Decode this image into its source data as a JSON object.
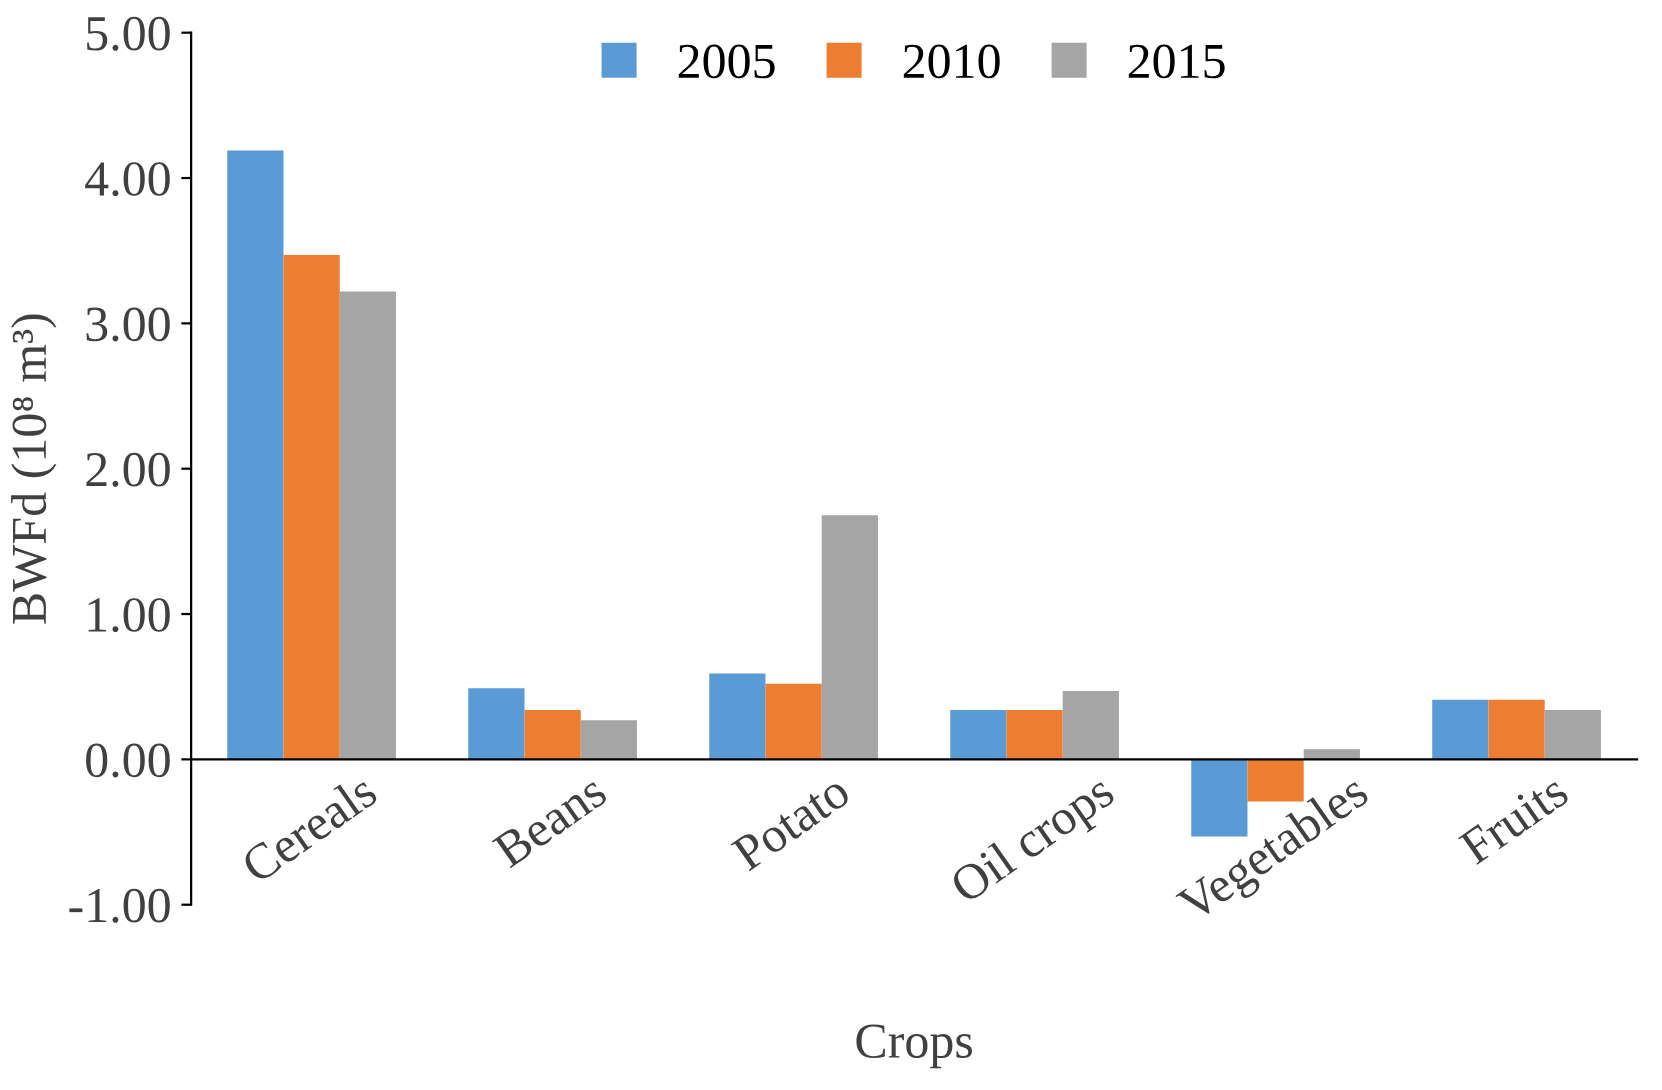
{
  "chart_data": {
    "type": "bar",
    "xlabel": "Crops",
    "ylabel": "BWFd (10⁸ m³)",
    "categories": [
      "Cereals",
      "Beans",
      "Potato",
      "Oil crops",
      "Vegetables",
      "Fruits"
    ],
    "series": [
      {
        "name": "2005",
        "color": "#5b9bd5",
        "values": [
          4.19,
          0.49,
          0.59,
          0.34,
          -0.53,
          0.41
        ]
      },
      {
        "name": "2010",
        "color": "#ed7d31",
        "values": [
          3.47,
          0.34,
          0.52,
          0.34,
          -0.29,
          0.41
        ]
      },
      {
        "name": "2015",
        "color": "#a5a5a5",
        "values": [
          3.22,
          0.27,
          1.68,
          0.47,
          0.07,
          0.34
        ]
      }
    ],
    "ylim": [
      -1,
      5
    ],
    "yticks": [
      {
        "value": -1,
        "label": "-1.00"
      },
      {
        "value": 0,
        "label": "0.00"
      },
      {
        "value": 1,
        "label": "1.00"
      },
      {
        "value": 2,
        "label": "2.00"
      },
      {
        "value": 3,
        "label": "3.00"
      },
      {
        "value": 4,
        "label": "4.00"
      },
      {
        "value": 5,
        "label": "5.00"
      }
    ],
    "grid": false,
    "legend": "top"
  }
}
